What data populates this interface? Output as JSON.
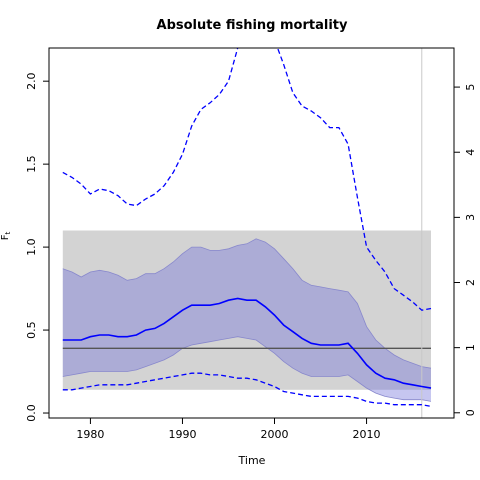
{
  "chart_data": {
    "type": "line",
    "title": "Absolute fishing mortality",
    "xlabel": "Time",
    "ylabel": "F",
    "ylabel_subscript": "t",
    "xlim": [
      1975.5,
      2019.5
    ],
    "ylim": [
      -0.03,
      2.2
    ],
    "y2lim": [
      -0.08,
      5.6
    ],
    "grid": false,
    "x_ticks": [
      1980,
      1990,
      2000,
      2010
    ],
    "y_ticks": [
      0.0,
      0.5,
      1.0,
      1.5,
      2.0
    ],
    "y_tick_labels": [
      "0.0",
      "0.5",
      "1.0",
      "1.5",
      "2.0"
    ],
    "y2_ticks": [
      0,
      1,
      2,
      3,
      4,
      5
    ],
    "y2_tick_labels": [
      "0",
      "1",
      "2",
      "3",
      "4",
      "5"
    ],
    "reference_band": {
      "x": [
        1977,
        2017
      ],
      "y": [
        0.14,
        1.1
      ],
      "color": "#d3d3d3"
    },
    "reference_line": {
      "y": 0.39,
      "x": [
        1977,
        2017
      ],
      "color": "#555555"
    },
    "vertical_line": {
      "x": 2016,
      "color": "#c8c8c8"
    },
    "x": [
      1977,
      1978,
      1979,
      1980,
      1981,
      1982,
      1983,
      1984,
      1985,
      1986,
      1987,
      1988,
      1989,
      1990,
      1991,
      1992,
      1993,
      1994,
      1995,
      1996,
      1997,
      1998,
      1999,
      2000,
      2001,
      2002,
      2003,
      2004,
      2005,
      2006,
      2007,
      2008,
      2009,
      2010,
      2011,
      2012,
      2013,
      2014,
      2015,
      2016,
      2017
    ],
    "series": [
      {
        "role": "estimate",
        "color": "#0000ff",
        "style": "solid",
        "values": [
          0.44,
          0.44,
          0.44,
          0.46,
          0.47,
          0.47,
          0.46,
          0.46,
          0.47,
          0.5,
          0.51,
          0.54,
          0.58,
          0.62,
          0.65,
          0.65,
          0.65,
          0.66,
          0.68,
          0.69,
          0.68,
          0.68,
          0.64,
          0.59,
          0.53,
          0.49,
          0.45,
          0.42,
          0.41,
          0.41,
          0.41,
          0.42,
          0.36,
          0.29,
          0.24,
          0.21,
          0.2,
          0.18,
          0.17,
          0.16,
          0.15
        ]
      },
      {
        "role": "ci-upper",
        "color": "#8888cc",
        "style": "band",
        "values": [
          0.87,
          0.85,
          0.82,
          0.85,
          0.86,
          0.85,
          0.83,
          0.8,
          0.81,
          0.84,
          0.84,
          0.87,
          0.91,
          0.96,
          1.0,
          1.0,
          0.98,
          0.98,
          0.99,
          1.01,
          1.02,
          1.05,
          1.03,
          0.99,
          0.93,
          0.87,
          0.8,
          0.77,
          0.76,
          0.75,
          0.74,
          0.73,
          0.66,
          0.52,
          0.44,
          0.39,
          0.35,
          0.32,
          0.3,
          0.28,
          0.27
        ]
      },
      {
        "role": "ci-lower",
        "color": "#8888cc",
        "style": "band",
        "values": [
          0.22,
          0.23,
          0.24,
          0.25,
          0.25,
          0.25,
          0.25,
          0.25,
          0.26,
          0.28,
          0.3,
          0.32,
          0.35,
          0.39,
          0.41,
          0.42,
          0.43,
          0.44,
          0.45,
          0.46,
          0.45,
          0.44,
          0.4,
          0.36,
          0.31,
          0.27,
          0.24,
          0.22,
          0.22,
          0.22,
          0.22,
          0.23,
          0.19,
          0.15,
          0.12,
          0.1,
          0.09,
          0.08,
          0.08,
          0.08,
          0.07
        ]
      },
      {
        "role": "upper-dashed",
        "color": "#0000ff",
        "style": "dashed",
        "values": [
          1.45,
          1.42,
          1.38,
          1.32,
          1.35,
          1.34,
          1.31,
          1.26,
          1.25,
          1.29,
          1.32,
          1.37,
          1.45,
          1.56,
          1.73,
          1.83,
          1.87,
          1.92,
          2.0,
          2.2,
          2.4,
          2.45,
          2.35,
          2.25,
          2.1,
          1.93,
          1.85,
          1.82,
          1.78,
          1.72,
          1.72,
          1.62,
          1.3,
          1.0,
          0.92,
          0.85,
          0.75,
          0.71,
          0.67,
          0.62,
          0.63
        ]
      },
      {
        "role": "lower-dashed",
        "color": "#0000ff",
        "style": "dashed",
        "values": [
          0.14,
          0.14,
          0.15,
          0.16,
          0.17,
          0.17,
          0.17,
          0.17,
          0.18,
          0.19,
          0.2,
          0.21,
          0.22,
          0.23,
          0.24,
          0.24,
          0.23,
          0.23,
          0.22,
          0.21,
          0.21,
          0.2,
          0.18,
          0.16,
          0.13,
          0.12,
          0.11,
          0.1,
          0.1,
          0.1,
          0.1,
          0.1,
          0.09,
          0.07,
          0.06,
          0.06,
          0.05,
          0.05,
          0.05,
          0.05,
          0.04
        ]
      }
    ]
  }
}
